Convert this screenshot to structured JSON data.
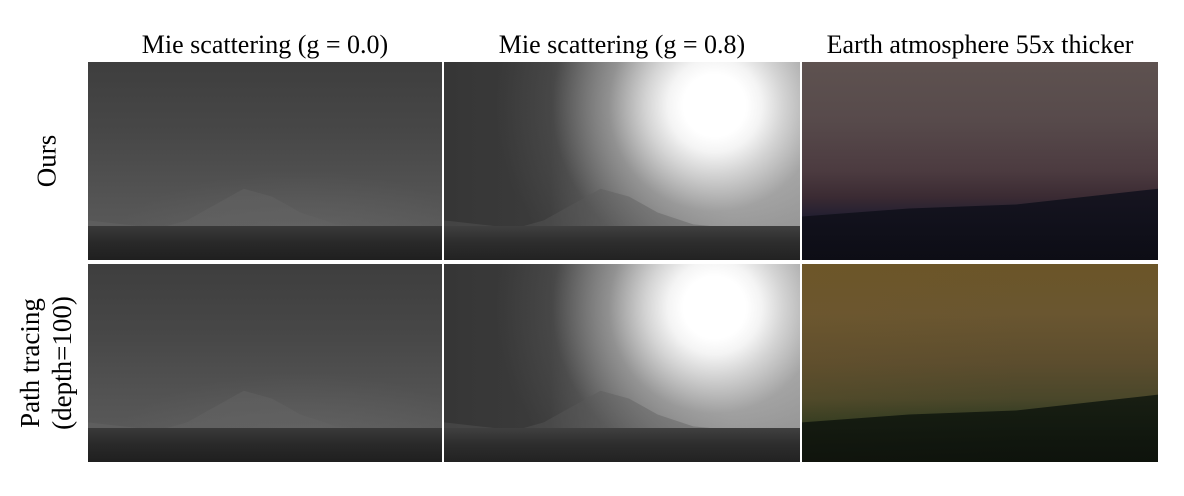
{
  "figure": {
    "columns": [
      {
        "title": "Mie scattering (g = 0.0)"
      },
      {
        "title": "Mie scattering (g = 0.8)"
      },
      {
        "title": "Earth atmosphere 55x thicker"
      }
    ],
    "rows": [
      {
        "label_line1": "Ours",
        "label_line2": ""
      },
      {
        "label_line1": "Path tracing",
        "label_line2": "(depth=100)"
      }
    ],
    "panels": [
      {
        "row": "Ours",
        "column": "Mie scattering (g = 0.0)",
        "content": "gray-haze-render"
      },
      {
        "row": "Ours",
        "column": "Mie scattering (g = 0.8)",
        "content": "gray-haze-sun-render"
      },
      {
        "row": "Ours",
        "column": "Earth atmosphere 55x thicker",
        "content": "earth-atmosphere-render"
      },
      {
        "row": "Path tracing (depth=100)",
        "column": "Mie scattering (g = 0.0)",
        "content": "gray-haze-render"
      },
      {
        "row": "Path tracing (depth=100)",
        "column": "Mie scattering (g = 0.8)",
        "content": "gray-haze-sun-render"
      },
      {
        "row": "Path tracing (depth=100)",
        "column": "Earth atmosphere 55x thicker",
        "content": "earth-atmosphere-render"
      }
    ]
  }
}
